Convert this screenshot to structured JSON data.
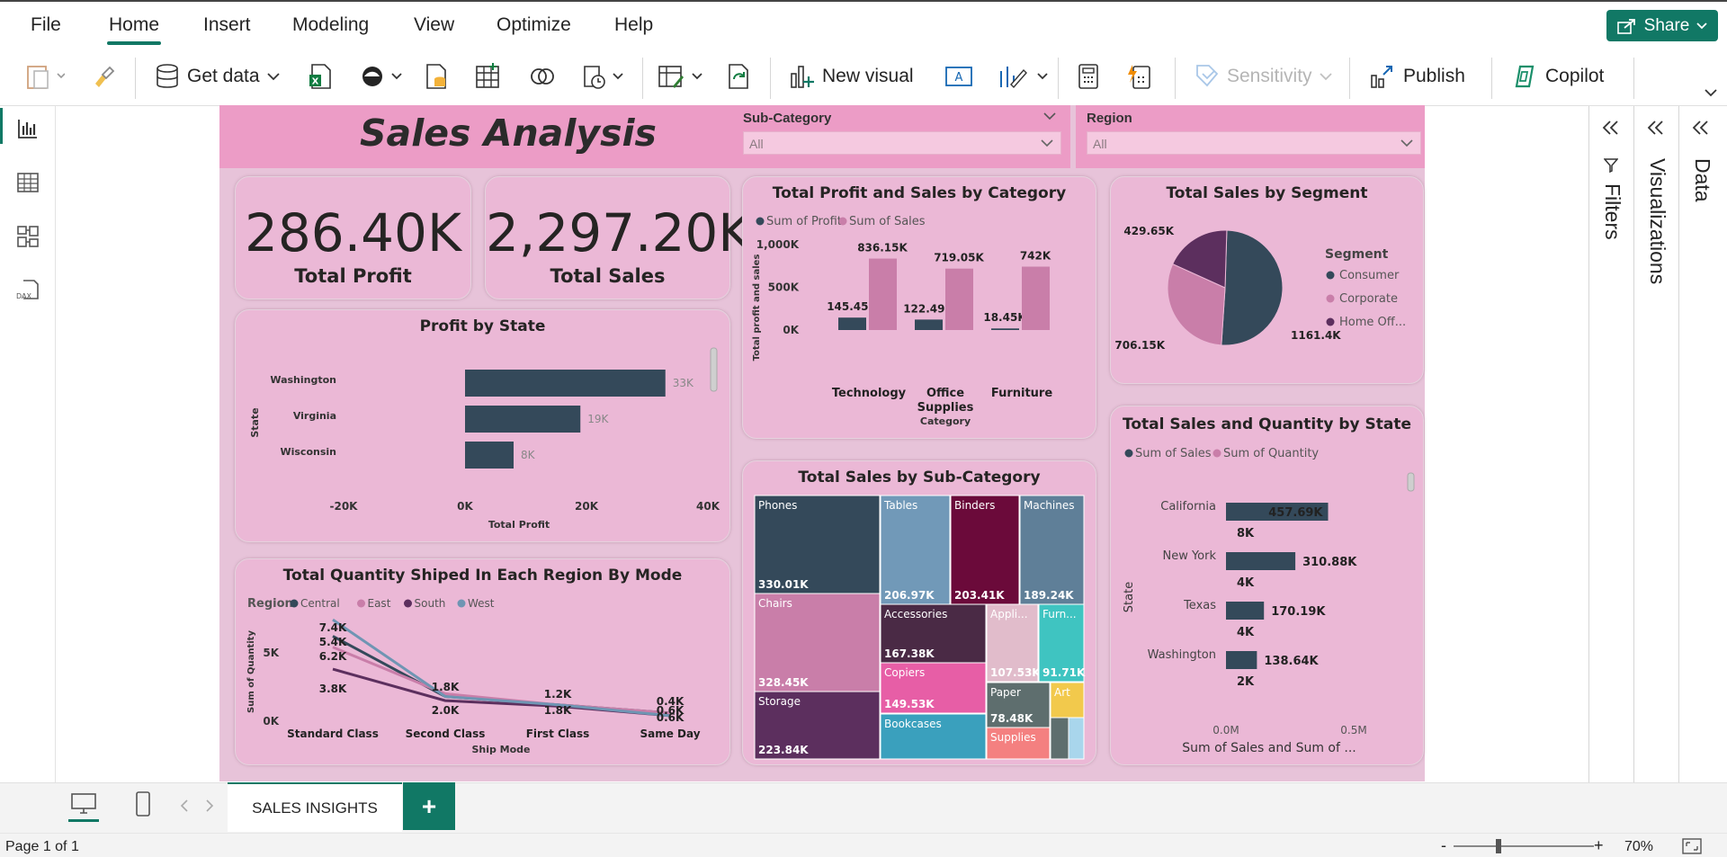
{
  "menu": {
    "file": "File",
    "home": "Home",
    "insert": "Insert",
    "modeling": "Modeling",
    "view": "View",
    "optimize": "Optimize",
    "help": "Help",
    "share": "Share"
  },
  "ribbon": {
    "get_data": "Get data",
    "new_visual": "New visual",
    "sensitivity": "Sensitivity",
    "publish": "Publish",
    "copilot": "Copilot"
  },
  "report": {
    "title": "Sales Analysis",
    "slicers": [
      {
        "label": "Sub-Category",
        "value": "All"
      },
      {
        "label": "Region",
        "value": "All"
      }
    ],
    "kpis": [
      {
        "value": "286.40K",
        "label": "Total Profit"
      },
      {
        "value": "2,297.20K",
        "label": "Total Sales"
      }
    ]
  },
  "visuals": {
    "profit_state": {
      "title": "Profit by State",
      "ylabel": "State",
      "xlabel": "Total Profit"
    },
    "cat": {
      "title": "Total Profit and Sales by Category",
      "legend": [
        "Sum of Profit",
        "Sum of Sales"
      ],
      "ylabel": "Total profit and sales",
      "xlabel": "Category"
    },
    "segment": {
      "title": "Total Sales by Segment",
      "legend_title": "Segment"
    },
    "subcat": {
      "title": "Total Sales by Sub-Category"
    },
    "region_mode": {
      "title": "Total Quantity Shiped In Each Region By Mode",
      "legend_title": "Region",
      "ylabel": "Sum of Quantity",
      "xlabel": "Ship Mode"
    },
    "state_qty": {
      "title": "Total Sales and Quantity by State",
      "legend": [
        "Sum of Sales",
        "Sum of Quantity"
      ],
      "ylabel": "State",
      "xlabel": "Sum of Sales and Sum of ..."
    }
  },
  "chart_data": [
    {
      "type": "bar",
      "title": "Profit by State",
      "orientation": "horizontal",
      "categories": [
        "Washington",
        "Virginia",
        "Wisconsin"
      ],
      "values": [
        33000,
        19000,
        8000
      ],
      "data_labels": [
        "33K",
        "19K",
        "8K"
      ],
      "xlim": [
        -20000,
        40000
      ],
      "xticks": [
        "-20K",
        "0K",
        "20K",
        "40K"
      ],
      "xlabel": "Total Profit",
      "ylabel": "State"
    },
    {
      "type": "bar",
      "title": "Total Profit and Sales by Category",
      "categories": [
        "Technology",
        "Office Supplies",
        "Furniture"
      ],
      "series": [
        {
          "name": "Sum of Profit",
          "values": [
            145450,
            122490,
            18450
          ],
          "labels": [
            "145.45K",
            "122.49K",
            "18.45K"
          ]
        },
        {
          "name": "Sum of Sales",
          "values": [
            836150,
            719050,
            742000
          ],
          "labels": [
            "836.15K",
            "719.05K",
            "742K"
          ]
        }
      ],
      "ylim": [
        0,
        1000000
      ],
      "yticks": [
        "0K",
        "500K",
        "1,000K"
      ],
      "xlabel": "Category",
      "ylabel": "Total profit and sales"
    },
    {
      "type": "pie",
      "title": "Total Sales by Segment",
      "labels": [
        "Consumer",
        "Corporate",
        "Home Off..."
      ],
      "values": [
        1161.4,
        706.15,
        429.65
      ],
      "value_labels": [
        "1161.4K",
        "706.15K",
        "429.65K"
      ]
    },
    {
      "type": "treemap",
      "title": "Total Sales by Sub-Category",
      "labels": [
        "Phones",
        "Chairs",
        "Storage",
        "Tables",
        "Binders",
        "Machines",
        "Accessories",
        "Copiers",
        "Bookcases",
        "Appli...",
        "Furn...",
        "Paper",
        "Art",
        "Supplies"
      ],
      "values": [
        330.01,
        328.45,
        223.84,
        206.97,
        203.41,
        189.24,
        167.38,
        149.53,
        114.88,
        107.53,
        91.71,
        78.48,
        27.12,
        46.67
      ],
      "value_labels": [
        "330.01K",
        "328.45K",
        "223.84K",
        "206.97K",
        "203.41K",
        "189.24K",
        "167.38K",
        "149.53K",
        "",
        "107.53K",
        "91.71K",
        "78.48K",
        "",
        ""
      ]
    },
    {
      "type": "line",
      "title": "Total Quantity Shiped In Each Region By Mode",
      "categories": [
        "Standard Class",
        "Second Class",
        "First Class",
        "Same Day"
      ],
      "series": [
        {
          "name": "Central",
          "values": [
            6200,
            1800,
            1200,
            600
          ]
        },
        {
          "name": "East",
          "values": [
            5400,
            2000,
            1200,
            600
          ]
        },
        {
          "name": "South",
          "values": [
            3800,
            1500,
            1100,
            400
          ]
        },
        {
          "name": "West",
          "values": [
            7400,
            1800,
            1200,
            400
          ]
        }
      ],
      "labels": [
        "7.4K",
        "5.4K",
        "6.2K",
        "3.8K",
        "1.8K",
        "2.0K",
        "1.2K",
        "1.8K",
        "0.4K",
        "0.6K",
        "0.6K"
      ],
      "ylim": [
        0,
        8000
      ],
      "yticks": [
        "0K",
        "5K"
      ],
      "xlabel": "Ship Mode",
      "ylabel": "Sum of Quantity"
    },
    {
      "type": "bar",
      "title": "Total Sales and Quantity by State",
      "orientation": "horizontal",
      "categories": [
        "California",
        "New York",
        "Texas",
        "Washington"
      ],
      "series": [
        {
          "name": "Sum of Sales",
          "values": [
            457690,
            310880,
            170190,
            138640
          ],
          "labels": [
            "457.69K",
            "310.88K",
            "170.19K",
            "138.64K"
          ]
        },
        {
          "name": "Sum of Quantity",
          "values": [
            8000,
            4000,
            4000,
            2000
          ],
          "labels": [
            "8K",
            "4K",
            "4K",
            "2K"
          ]
        }
      ],
      "xticks": [
        "0.0M",
        "0.5M"
      ],
      "xlabel": "Sum of Sales and Sum of ...",
      "ylabel": "State"
    }
  ],
  "tabs": {
    "page": "SALES INSIGHTS",
    "add": "+"
  },
  "panes": {
    "filters": "Filters",
    "visualizations": "Visualizations",
    "data": "Data"
  },
  "status": {
    "page": "Page 1 of 1",
    "zoom": "70%"
  },
  "colors": {
    "accent": "#117865",
    "title_band": "#ec9cc6",
    "page_bg": "#e7c3d9",
    "card": "#ebb8d6",
    "dark": "#34495a",
    "pink": "#c97ea9",
    "plum": "#5c2f5e"
  }
}
